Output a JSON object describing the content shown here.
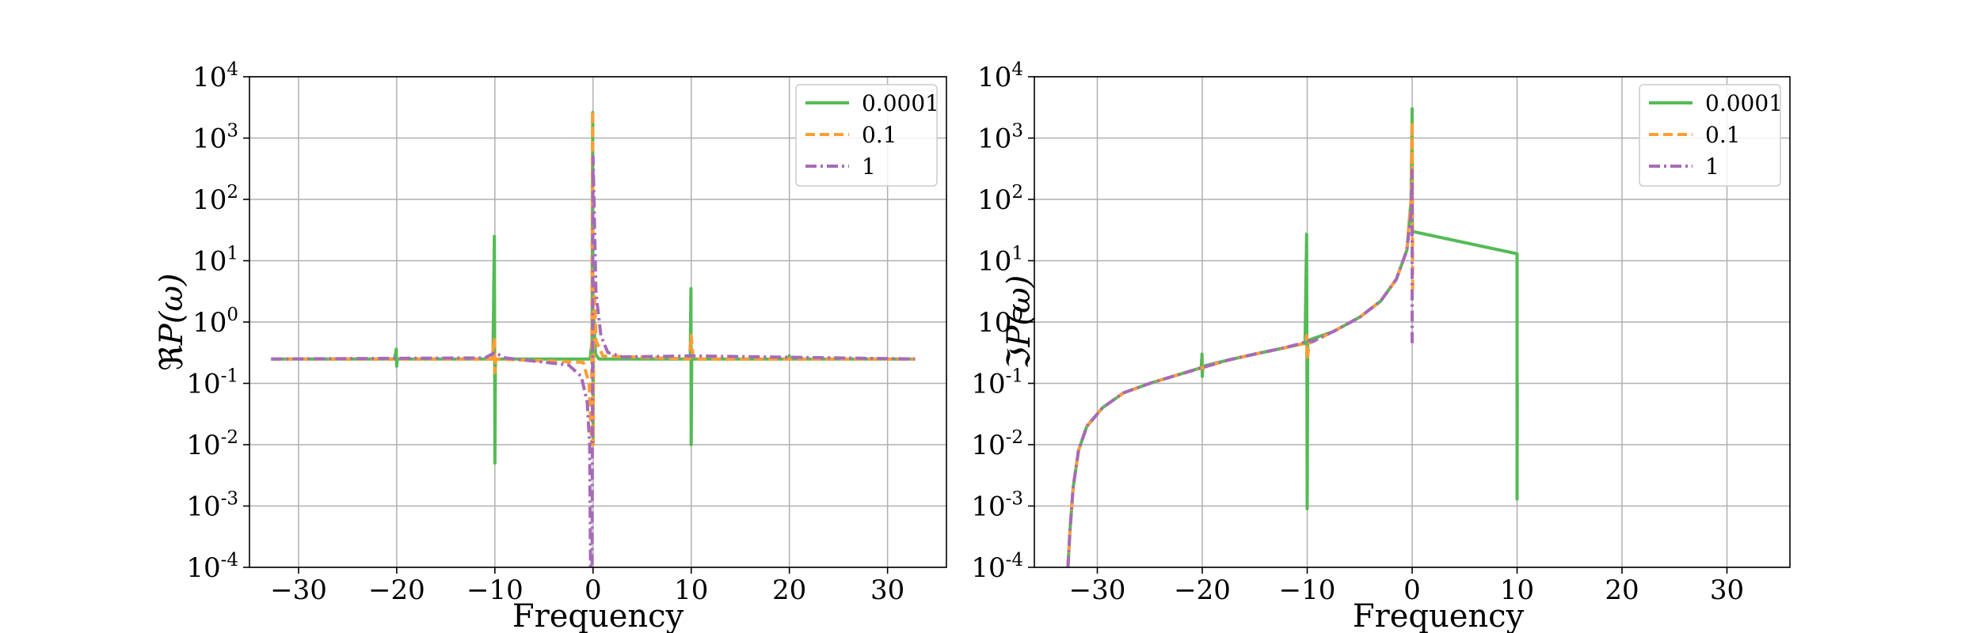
{
  "colors": {
    "green": "#55bb55",
    "orange": "#ff9e33",
    "purple": "#a66bb8"
  },
  "chart_data": [
    {
      "type": "line",
      "panel": "left",
      "xlabel": "Frequency",
      "ylabel_prefix": "ℜ",
      "ylabel": "P(ω)",
      "yscale": "log",
      "xlim": [
        -35,
        36
      ],
      "ylim": [
        0.0001,
        10000
      ],
      "xticks": [
        -30,
        -20,
        -10,
        0,
        10,
        20,
        30
      ],
      "xtick_labels": [
        "−30",
        "−20",
        "−10",
        "0",
        "10",
        "20",
        "30"
      ],
      "yticks": [
        0.0001,
        0.001,
        0.01,
        0.1,
        1,
        10,
        100,
        1000,
        10000
      ],
      "ytick_bases": [
        "10",
        "10",
        "10",
        "10",
        "10",
        "10",
        "10",
        "10",
        "10"
      ],
      "ytick_exps": [
        "-4",
        "-3",
        "-2",
        "-1",
        "0",
        "1",
        "2",
        "3",
        "4"
      ],
      "grid": true,
      "legend_position": "top-right",
      "series": [
        {
          "name": "0.0001",
          "color": "#55bb55",
          "dash": "solid",
          "points": [
            [
              -32.8,
              0.25
            ],
            [
              -20.2,
              0.25
            ],
            [
              -20.05,
              0.36
            ],
            [
              -20.0,
              0.19
            ],
            [
              -19.95,
              0.25
            ],
            [
              -10.2,
              0.25
            ],
            [
              -10.05,
              25
            ],
            [
              -10.0,
              0.005
            ],
            [
              -9.95,
              0.25
            ],
            [
              -0.3,
              0.25
            ],
            [
              -0.1,
              0.5
            ],
            [
              -0.03,
              2600
            ],
            [
              0.0,
              0.01
            ],
            [
              0.05,
              1.5
            ],
            [
              0.25,
              0.3
            ],
            [
              0.6,
              0.25
            ],
            [
              9.9,
              0.25
            ],
            [
              9.97,
              3.5
            ],
            [
              10.0,
              0.01
            ],
            [
              10.05,
              0.25
            ],
            [
              19.95,
              0.25
            ],
            [
              20.0,
              0.28
            ],
            [
              20.05,
              0.25
            ],
            [
              32.8,
              0.25
            ]
          ]
        },
        {
          "name": "0.1",
          "color": "#ff9e33",
          "dash": "dashed",
          "points": [
            [
              -32.8,
              0.25
            ],
            [
              -10.3,
              0.25
            ],
            [
              -10.05,
              0.55
            ],
            [
              -10.0,
              0.15
            ],
            [
              -9.9,
              0.25
            ],
            [
              -1.0,
              0.22
            ],
            [
              -0.4,
              0.1
            ],
            [
              -0.15,
              0.01
            ],
            [
              -0.05,
              2800
            ],
            [
              0.0,
              0.01
            ],
            [
              0.1,
              5
            ],
            [
              0.3,
              0.5
            ],
            [
              1.0,
              0.28
            ],
            [
              9.8,
              0.25
            ],
            [
              10.0,
              0.6
            ],
            [
              10.2,
              0.25
            ],
            [
              32.8,
              0.25
            ]
          ]
        },
        {
          "name": "1",
          "color": "#a66bb8",
          "dash": "dash-dot",
          "points": [
            [
              -32.8,
              0.25
            ],
            [
              -11.0,
              0.26
            ],
            [
              -10.0,
              0.32
            ],
            [
              -9.0,
              0.26
            ],
            [
              -2.5,
              0.2
            ],
            [
              -1.2,
              0.13
            ],
            [
              -0.6,
              0.05
            ],
            [
              -0.35,
              0.01
            ],
            [
              -0.25,
              0.0001
            ],
            [
              -0.1,
              0.0001
            ],
            [
              0.0,
              500
            ],
            [
              0.3,
              3
            ],
            [
              0.8,
              0.6
            ],
            [
              1.5,
              0.32
            ],
            [
              3.0,
              0.27
            ],
            [
              10.0,
              0.28
            ],
            [
              32.8,
              0.25
            ]
          ]
        }
      ]
    },
    {
      "type": "line",
      "panel": "right",
      "xlabel": "Frequency",
      "ylabel_prefix": "ℑ",
      "ylabel": "P(ω)",
      "yscale": "log",
      "xlim": [
        -36,
        36
      ],
      "ylim": [
        0.0001,
        10000
      ],
      "xticks": [
        -30,
        -20,
        -10,
        0,
        10,
        20,
        30
      ],
      "xtick_labels": [
        "−30",
        "−20",
        "−10",
        "0",
        "10",
        "20",
        "30"
      ],
      "yticks": [
        0.0001,
        0.001,
        0.01,
        0.1,
        1,
        10,
        100,
        1000,
        10000
      ],
      "ytick_bases": [
        "10",
        "10",
        "10",
        "10",
        "10",
        "10",
        "10",
        "10",
        "10"
      ],
      "ytick_exps": [
        "-4",
        "-3",
        "-2",
        "-1",
        "0",
        "1",
        "2",
        "3",
        "4"
      ],
      "grid": true,
      "legend_position": "top-right",
      "series": [
        {
          "name": "0.0001",
          "color": "#55bb55",
          "dash": "solid",
          "points": [
            [
              -32.8,
              0.0001
            ],
            [
              -32.6,
              0.0004
            ],
            [
              -32.3,
              0.002
            ],
            [
              -31.8,
              0.008
            ],
            [
              -31.0,
              0.02
            ],
            [
              -29.5,
              0.04
            ],
            [
              -27.5,
              0.07
            ],
            [
              -25,
              0.1
            ],
            [
              -22.5,
              0.135
            ],
            [
              -20.1,
              0.18
            ],
            [
              -20.02,
              0.3
            ],
            [
              -20.0,
              0.13
            ],
            [
              -19.95,
              0.19
            ],
            [
              -17.5,
              0.24
            ],
            [
              -15,
              0.3
            ],
            [
              -12.5,
              0.37
            ],
            [
              -10.2,
              0.45
            ],
            [
              -10.05,
              27
            ],
            [
              -10.0,
              0.0009
            ],
            [
              -9.95,
              0.5
            ],
            [
              -7.5,
              0.7
            ],
            [
              -5,
              1.2
            ],
            [
              -3,
              2.2
            ],
            [
              -1.5,
              5
            ],
            [
              -0.5,
              15
            ],
            [
              -0.1,
              100
            ],
            [
              0.0,
              3000
            ],
            [
              0.02,
              30
            ],
            [
              10.0,
              13
            ],
            [
              10.0,
              0.0013
            ],
            [
              10.02,
              0.1
            ]
          ]
        },
        {
          "name": "0.1",
          "color": "#ff9e33",
          "dash": "dashed",
          "points": [
            [
              -32.8,
              0.0001
            ],
            [
              -32.6,
              0.0004
            ],
            [
              -32.3,
              0.002
            ],
            [
              -31.8,
              0.008
            ],
            [
              -31.0,
              0.02
            ],
            [
              -29.5,
              0.04
            ],
            [
              -27.5,
              0.07
            ],
            [
              -25,
              0.1
            ],
            [
              -22.5,
              0.135
            ],
            [
              -20,
              0.18
            ],
            [
              -17.5,
              0.24
            ],
            [
              -15,
              0.3
            ],
            [
              -12.5,
              0.37
            ],
            [
              -10.2,
              0.45
            ],
            [
              -10.05,
              0.6
            ],
            [
              -10.0,
              0.25
            ],
            [
              -9.8,
              0.45
            ],
            [
              -7.5,
              0.7
            ],
            [
              -5,
              1.2
            ],
            [
              -3,
              2.2
            ],
            [
              -1.5,
              5
            ],
            [
              -0.5,
              15
            ],
            [
              -0.1,
              100
            ],
            [
              0.0,
              1800
            ],
            [
              0.05,
              3
            ]
          ]
        },
        {
          "name": "1",
          "color": "#a66bb8",
          "dash": "dash-dot",
          "points": [
            [
              -32.8,
              0.0001
            ],
            [
              -32.6,
              0.0004
            ],
            [
              -32.3,
              0.002
            ],
            [
              -31.8,
              0.008
            ],
            [
              -31.0,
              0.02
            ],
            [
              -29.5,
              0.04
            ],
            [
              -27.5,
              0.07
            ],
            [
              -25,
              0.1
            ],
            [
              -22.5,
              0.135
            ],
            [
              -20,
              0.18
            ],
            [
              -17.5,
              0.24
            ],
            [
              -15,
              0.3
            ],
            [
              -12.5,
              0.37
            ],
            [
              -10.5,
              0.45
            ],
            [
              -10.0,
              0.5
            ],
            [
              -9.5,
              0.48
            ],
            [
              -7.5,
              0.7
            ],
            [
              -5,
              1.2
            ],
            [
              -3,
              2.2
            ],
            [
              -1.5,
              5
            ],
            [
              -0.5,
              15
            ],
            [
              -0.1,
              60
            ],
            [
              0.0,
              300
            ],
            [
              0.0,
              0.4
            ]
          ]
        }
      ]
    }
  ]
}
